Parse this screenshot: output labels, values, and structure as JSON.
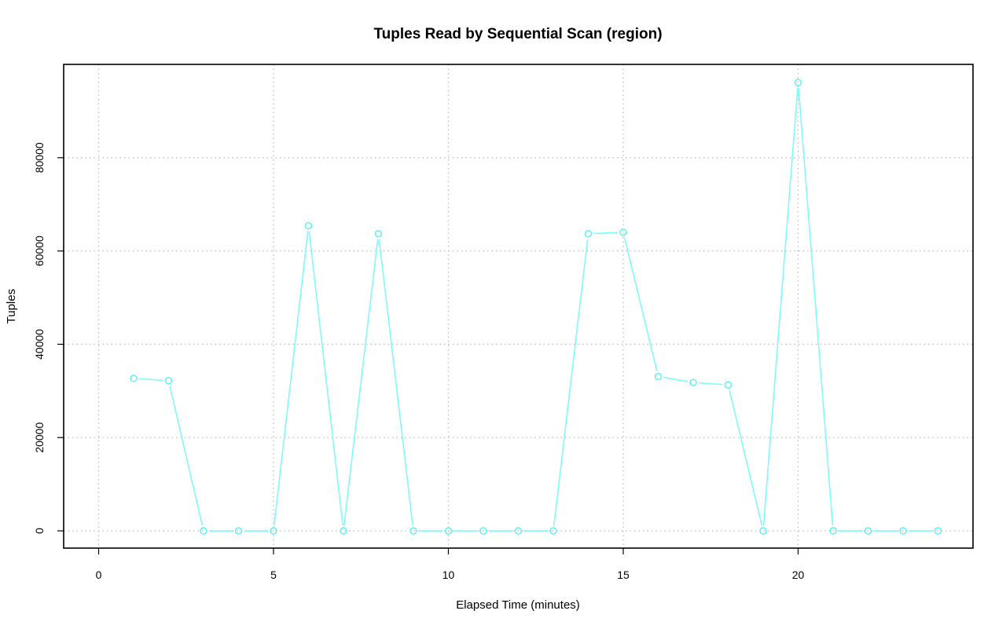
{
  "chart_data": {
    "type": "line",
    "title": "Tuples Read by Sequential Scan (region)",
    "xlabel": "Elapsed Time (minutes)",
    "ylabel": "Tuples",
    "xlim": [
      -1,
      25
    ],
    "ylim": [
      -3700,
      100000
    ],
    "xticks": [
      0,
      5,
      10,
      15,
      20
    ],
    "yticks": [
      0,
      20000,
      40000,
      60000,
      80000
    ],
    "grid": true,
    "series_color": "#7ffafa",
    "series": [
      {
        "x": [
          1,
          2,
          3,
          4,
          5,
          6,
          7,
          8,
          9,
          10,
          11,
          12,
          13,
          14,
          15,
          16,
          17,
          18,
          19,
          20,
          21,
          22,
          23,
          24
        ],
        "values": [
          32700,
          32200,
          0,
          0,
          0,
          65400,
          0,
          63700,
          0,
          0,
          0,
          0,
          0,
          63700,
          64000,
          33100,
          31800,
          31300,
          0,
          96100,
          0,
          0,
          0,
          0
        ]
      }
    ]
  }
}
